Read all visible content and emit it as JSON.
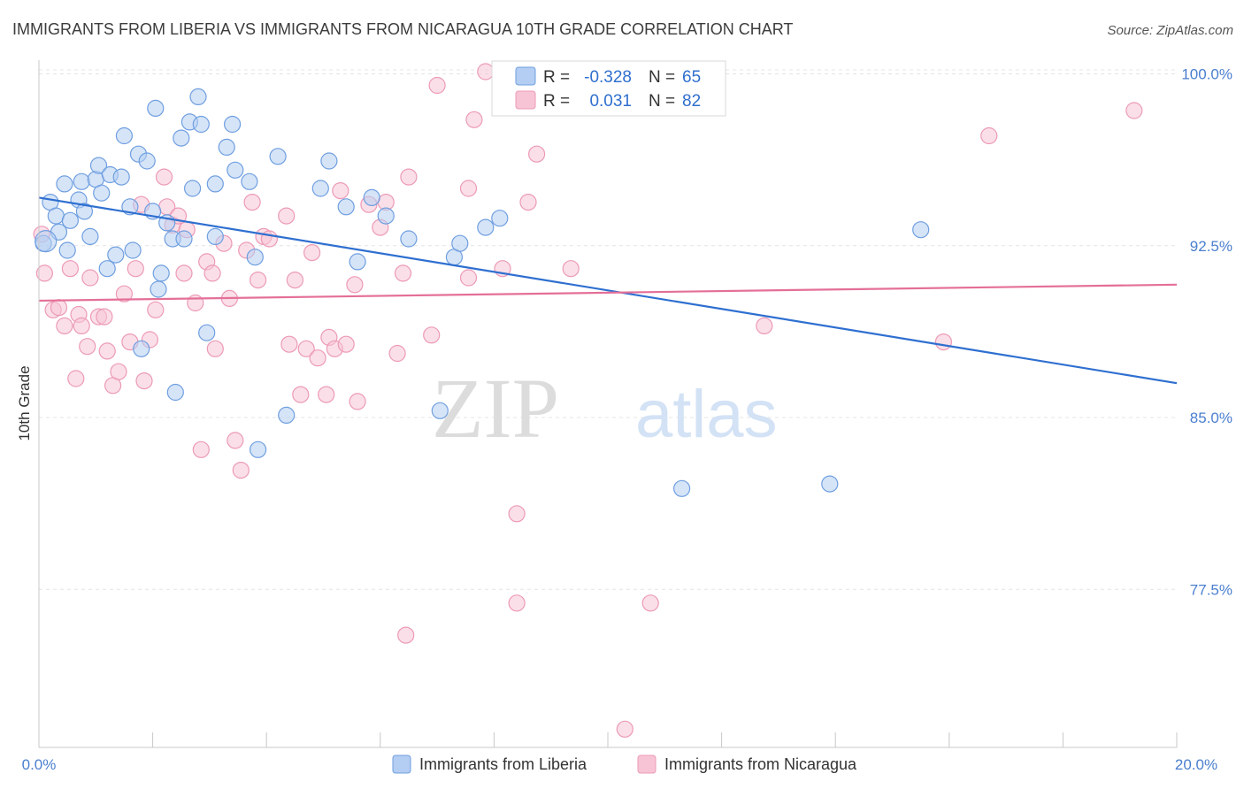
{
  "chart_data": {
    "type": "scatter",
    "title": "IMMIGRANTS FROM LIBERIA VS IMMIGRANTS FROM NICARAGUA 10TH GRADE CORRELATION CHART",
    "source": "Source: ZipAtlas.com",
    "ylabel": "10th Grade",
    "xlim": [
      0,
      20
    ],
    "ylim": [
      70.6,
      100.6
    ],
    "y_ticks": [
      {
        "value": 100.0,
        "label": "100.0%"
      },
      {
        "value": 92.5,
        "label": "92.5%"
      },
      {
        "value": 85.0,
        "label": "85.0%"
      },
      {
        "value": 77.5,
        "label": "77.5%"
      }
    ],
    "x_tick_labels": {
      "min": "0.0%",
      "max": "20.0%"
    },
    "grid": true,
    "watermark": {
      "part1": "ZIP",
      "part2": "atlas"
    },
    "legend_top": {
      "position": "top-center",
      "rows": [
        {
          "r_label": "R =",
          "r_value": "-0.328",
          "n_label": "N =",
          "n_value": "65"
        },
        {
          "r_label": "R =",
          "r_value": "0.031",
          "n_label": "N =",
          "n_value": "82"
        }
      ]
    },
    "series": [
      {
        "name": "Immigrants from Liberia",
        "color": "#6f9fe0",
        "fill": "#b4cdf2",
        "trend_color": "#2e6fd0",
        "trend": {
          "x0": 0.0,
          "y0": 94.6,
          "x1": 20.0,
          "y1": 86.5
        },
        "points": [
          [
            0.08,
            92.6
          ],
          [
            0.2,
            94.4
          ],
          [
            0.3,
            93.8
          ],
          [
            0.35,
            93.1
          ],
          [
            0.45,
            95.2
          ],
          [
            0.5,
            92.3
          ],
          [
            0.55,
            93.6
          ],
          [
            0.7,
            94.5
          ],
          [
            0.75,
            95.3
          ],
          [
            0.8,
            94.0
          ],
          [
            0.9,
            92.9
          ],
          [
            1.0,
            95.4
          ],
          [
            1.05,
            96.0
          ],
          [
            1.1,
            94.8
          ],
          [
            1.2,
            91.5
          ],
          [
            1.25,
            95.6
          ],
          [
            1.35,
            92.1
          ],
          [
            1.45,
            95.5
          ],
          [
            1.5,
            97.3
          ],
          [
            1.6,
            94.2
          ],
          [
            1.65,
            92.3
          ],
          [
            1.75,
            96.5
          ],
          [
            1.8,
            88.0
          ],
          [
            1.9,
            96.2
          ],
          [
            2.0,
            94.0
          ],
          [
            2.05,
            98.5
          ],
          [
            2.1,
            90.6
          ],
          [
            2.15,
            91.3
          ],
          [
            2.25,
            93.5
          ],
          [
            2.35,
            92.8
          ],
          [
            2.4,
            86.1
          ],
          [
            2.5,
            97.2
          ],
          [
            2.55,
            92.8
          ],
          [
            2.65,
            97.9
          ],
          [
            2.7,
            95.0
          ],
          [
            2.8,
            99.0
          ],
          [
            2.85,
            97.8
          ],
          [
            2.95,
            88.7
          ],
          [
            3.1,
            95.2
          ],
          [
            3.1,
            92.9
          ],
          [
            3.3,
            96.8
          ],
          [
            3.4,
            97.8
          ],
          [
            3.45,
            95.8
          ],
          [
            3.7,
            95.3
          ],
          [
            3.8,
            92.0
          ],
          [
            3.85,
            83.6
          ],
          [
            4.2,
            96.4
          ],
          [
            4.35,
            85.1
          ],
          [
            4.95,
            95.0
          ],
          [
            5.1,
            96.2
          ],
          [
            5.4,
            94.2
          ],
          [
            5.6,
            91.8
          ],
          [
            5.85,
            94.6
          ],
          [
            6.1,
            93.8
          ],
          [
            6.5,
            92.8
          ],
          [
            7.05,
            85.3
          ],
          [
            7.3,
            92.0
          ],
          [
            7.4,
            92.6
          ],
          [
            7.85,
            93.3
          ],
          [
            8.1,
            93.7
          ],
          [
            9.45,
            100.2
          ],
          [
            11.3,
            81.9
          ],
          [
            13.9,
            82.1
          ],
          [
            15.5,
            93.2
          ],
          [
            0.12,
            92.7
          ]
        ]
      },
      {
        "name": "Immigrants from Nicaragua",
        "color": "#ec9ab7",
        "fill": "#f7c4d5",
        "trend_color": "#e46f98",
        "trend": {
          "x0": 0.0,
          "y0": 90.1,
          "x1": 20.0,
          "y1": 90.8
        },
        "points": [
          [
            0.05,
            93.0
          ],
          [
            0.1,
            91.3
          ],
          [
            0.25,
            89.7
          ],
          [
            0.35,
            89.8
          ],
          [
            0.45,
            89.0
          ],
          [
            0.55,
            91.5
          ],
          [
            0.65,
            86.7
          ],
          [
            0.7,
            89.5
          ],
          [
            0.75,
            89.0
          ],
          [
            0.85,
            88.1
          ],
          [
            0.9,
            91.1
          ],
          [
            1.05,
            89.4
          ],
          [
            1.15,
            89.4
          ],
          [
            1.2,
            87.9
          ],
          [
            1.3,
            86.4
          ],
          [
            1.4,
            87.0
          ],
          [
            1.5,
            90.4
          ],
          [
            1.6,
            88.3
          ],
          [
            1.7,
            91.5
          ],
          [
            1.8,
            94.3
          ],
          [
            1.85,
            86.6
          ],
          [
            1.95,
            88.4
          ],
          [
            2.05,
            89.7
          ],
          [
            2.2,
            95.5
          ],
          [
            2.25,
            94.2
          ],
          [
            2.35,
            93.4
          ],
          [
            2.45,
            93.8
          ],
          [
            2.55,
            91.3
          ],
          [
            2.6,
            93.2
          ],
          [
            2.75,
            90.0
          ],
          [
            2.85,
            83.6
          ],
          [
            2.95,
            91.8
          ],
          [
            3.05,
            91.3
          ],
          [
            3.1,
            88.0
          ],
          [
            3.25,
            92.6
          ],
          [
            3.35,
            90.2
          ],
          [
            3.45,
            84.0
          ],
          [
            3.55,
            82.7
          ],
          [
            3.65,
            92.3
          ],
          [
            3.75,
            94.4
          ],
          [
            3.85,
            91.0
          ],
          [
            3.95,
            92.9
          ],
          [
            4.05,
            92.8
          ],
          [
            4.35,
            93.8
          ],
          [
            4.4,
            88.2
          ],
          [
            4.5,
            91.0
          ],
          [
            4.6,
            86.0
          ],
          [
            4.7,
            88.0
          ],
          [
            4.8,
            92.2
          ],
          [
            4.9,
            87.6
          ],
          [
            5.05,
            86.0
          ],
          [
            5.1,
            88.5
          ],
          [
            5.2,
            88.0
          ],
          [
            5.3,
            94.9
          ],
          [
            5.4,
            88.2
          ],
          [
            5.55,
            90.8
          ],
          [
            5.6,
            85.7
          ],
          [
            5.8,
            94.3
          ],
          [
            6.0,
            93.3
          ],
          [
            6.1,
            94.4
          ],
          [
            6.3,
            87.8
          ],
          [
            6.4,
            91.3
          ],
          [
            6.45,
            75.5
          ],
          [
            6.5,
            95.5
          ],
          [
            6.9,
            88.6
          ],
          [
            7.0,
            99.5
          ],
          [
            7.55,
            95.0
          ],
          [
            7.55,
            91.1
          ],
          [
            7.65,
            98.0
          ],
          [
            7.85,
            100.1
          ],
          [
            8.15,
            91.5
          ],
          [
            8.4,
            80.8
          ],
          [
            8.4,
            76.9
          ],
          [
            8.6,
            94.4
          ],
          [
            8.75,
            96.5
          ],
          [
            9.35,
            91.5
          ],
          [
            10.3,
            71.4
          ],
          [
            10.75,
            76.9
          ],
          [
            12.75,
            89.0
          ],
          [
            15.9,
            88.3
          ],
          [
            16.7,
            97.3
          ],
          [
            19.25,
            98.4
          ]
        ]
      }
    ]
  }
}
